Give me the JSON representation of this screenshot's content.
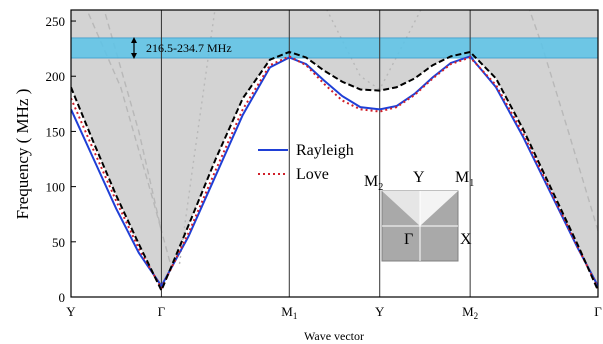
{
  "chart_data": {
    "type": "line",
    "xlabel": "Wave vector",
    "ylabel": "Frequency ( MHz )",
    "ylim": [
      0,
      260
    ],
    "yticks": [
      0,
      50,
      100,
      150,
      200,
      250
    ],
    "xticks": [
      {
        "pos": 0,
        "label": "Y",
        "sub": ""
      },
      {
        "pos": 1,
        "label": "Γ",
        "sub": ""
      },
      {
        "pos": 2.414,
        "label": "M",
        "sub": "1"
      },
      {
        "pos": 3.414,
        "label": "Y",
        "sub": ""
      },
      {
        "pos": 4.414,
        "label": "M",
        "sub": "2"
      },
      {
        "pos": 5.828,
        "label": "Γ",
        "sub": ""
      }
    ],
    "xlim": [
      0,
      5.828
    ],
    "band_gap": {
      "ymin": 216.5,
      "ymax": 234.7,
      "label": "216.5-234.7 MHz"
    },
    "series": [
      {
        "name": "Rayleigh",
        "color": "#1f3fd6",
        "style": "solid",
        "x": [
          0,
          0.25,
          0.5,
          0.75,
          1.0,
          1.3,
          1.6,
          1.9,
          2.2,
          2.414,
          2.6,
          2.8,
          3.0,
          3.2,
          3.414,
          3.6,
          3.8,
          4.0,
          4.2,
          4.414,
          4.7,
          5.0,
          5.3,
          5.6,
          5.828
        ],
        "y": [
          170,
          125,
          80,
          40,
          10,
          55,
          110,
          165,
          208,
          217,
          211,
          196,
          182,
          172,
          170,
          173,
          184,
          199,
          212,
          218,
          190,
          145,
          95,
          45,
          10
        ]
      },
      {
        "name": "Love",
        "color": "#d0202a",
        "style": "dotted",
        "x": [
          0,
          0.25,
          0.5,
          0.75,
          1.0,
          1.3,
          1.6,
          1.9,
          2.2,
          2.414,
          2.6,
          2.8,
          3.0,
          3.2,
          3.414,
          3.6,
          3.8,
          4.0,
          4.2,
          4.414,
          4.7,
          5.0,
          5.3,
          5.6,
          5.828
        ],
        "y": [
          180,
          133,
          87,
          44,
          8,
          58,
          115,
          170,
          210,
          218,
          210,
          193,
          178,
          170,
          168,
          172,
          183,
          198,
          211,
          217,
          192,
          148,
          97,
          46,
          8
        ]
      },
      {
        "name": "",
        "color": "#000000",
        "style": "dashed",
        "x": [
          0,
          0.25,
          0.5,
          0.75,
          1.0,
          1.3,
          1.6,
          1.9,
          2.2,
          2.414,
          2.6,
          2.8,
          3.0,
          3.2,
          3.414,
          3.6,
          3.8,
          4.0,
          4.2,
          4.414,
          4.7,
          5.0,
          5.3,
          5.6,
          5.828
        ],
        "y": [
          190,
          140,
          92,
          48,
          6,
          65,
          125,
          180,
          215,
          222,
          217,
          205,
          195,
          188,
          187,
          190,
          198,
          210,
          218,
          222,
          198,
          152,
          100,
          48,
          6
        ]
      }
    ],
    "legend": [
      {
        "label": "Rayleigh",
        "color": "#1f3fd6",
        "style": "solid"
      },
      {
        "label": "Love",
        "color": "#d0202a",
        "style": "dotted"
      }
    ],
    "brillouin_zone": {
      "labels": {
        "m2": "M",
        "m2_sub": "2",
        "y": "Y",
        "m1": "M",
        "m1_sub": "1",
        "gamma": "Γ",
        "x": "X"
      }
    },
    "colors": {
      "shading": "#d3d3d3",
      "band": "#5bc3e8"
    }
  }
}
